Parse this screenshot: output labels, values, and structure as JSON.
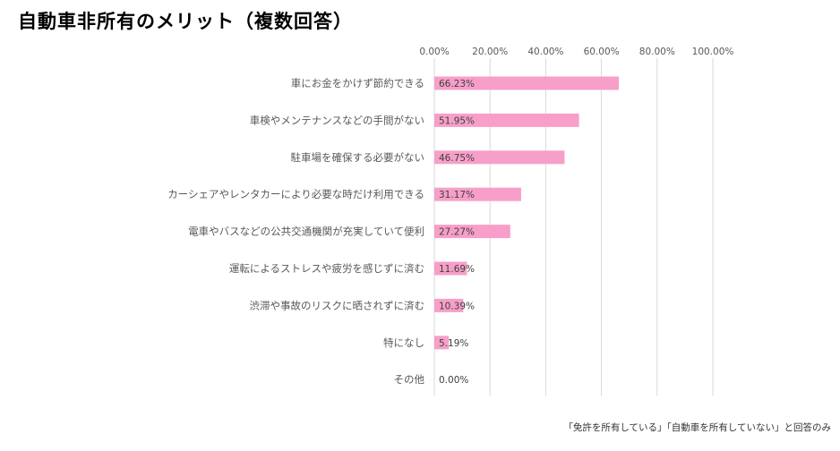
{
  "title": "自動車非所有のメリット（複数回答）",
  "footnote": "「免許を所有している」「自動車を所有していない」と回答のみ",
  "colors": {
    "bar": "#f79fc9",
    "grid": "#d9d9d9",
    "tick_text": "#595959",
    "category_text": "#595959",
    "data_label_text": "#404040"
  },
  "chart_data": {
    "type": "bar",
    "orientation": "horizontal",
    "title": "自動車非所有のメリット（複数回答）",
    "xlabel": "",
    "ylabel": "",
    "xlim": [
      0,
      100
    ],
    "x_ticks": [
      0,
      20,
      40,
      60,
      80,
      100
    ],
    "x_tick_labels": [
      "0.00%",
      "20.00%",
      "40.00%",
      "60.00%",
      "80.00%",
      "100.00%"
    ],
    "grid": true,
    "legend": "none",
    "categories": [
      "車にお金をかけず節約できる",
      "車検やメンテナンスなどの手間がない",
      "駐車場を確保する必要がない",
      "カーシェアやレンタカーにより必要な時だけ利用できる",
      "電車やバスなどの公共交通機関が充実していて便利",
      "運転によるストレスや疲労を感じずに済む",
      "渋滞や事故のリスクに晒されずに済む",
      "特になし",
      "その他"
    ],
    "values": [
      66.23,
      51.95,
      46.75,
      31.17,
      27.27,
      11.69,
      10.39,
      5.19,
      0.0
    ],
    "data_labels": [
      "66.23%",
      "51.95%",
      "46.75%",
      "31.17%",
      "27.27%",
      "11.69%",
      "10.39%",
      "5.19%",
      "0.00%"
    ]
  }
}
